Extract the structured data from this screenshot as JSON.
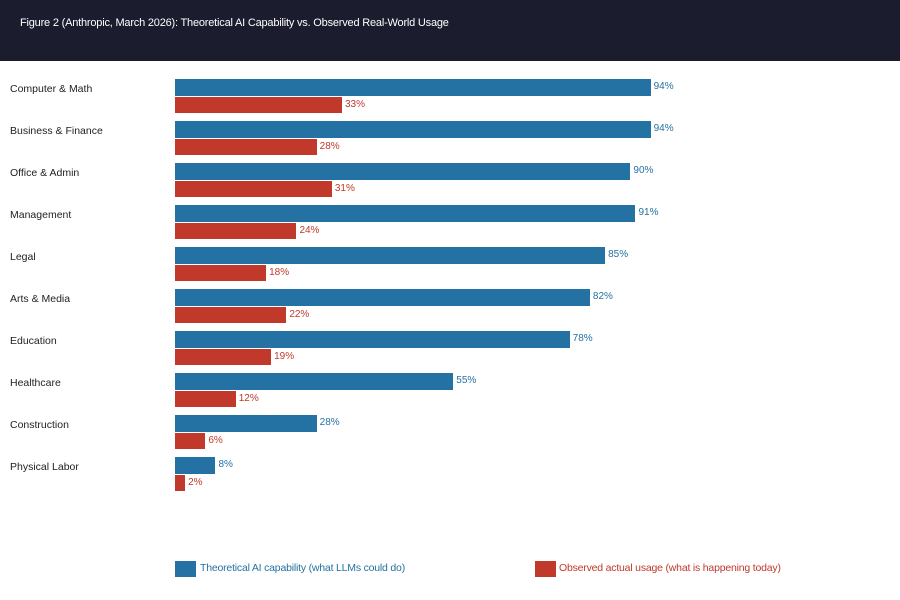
{
  "header": {
    "title": "Figure 2 (Anthropic, March 2026): Theoretical AI Capability vs. Observed Real-World Usage"
  },
  "chart_data": {
    "type": "bar",
    "orientation": "horizontal",
    "title": "Figure 2 (Anthropic, March 2026): Theoretical AI Capability vs. Observed Real-World Usage",
    "categories": [
      "Computer & Math",
      "Business & Finance",
      "Office & Admin",
      "Management",
      "Legal",
      "Arts & Media",
      "Education",
      "Healthcare",
      "Construction",
      "Physical Labor"
    ],
    "series": [
      {
        "name": "Theoretical AI capability (what LLMs could do)",
        "color": "#2471a3",
        "values": [
          94,
          94,
          90,
          91,
          85,
          82,
          78,
          55,
          28,
          8
        ]
      },
      {
        "name": "Observed actual usage (what is happening today)",
        "color": "#c0392b",
        "values": [
          33,
          28,
          31,
          24,
          18,
          22,
          19,
          12,
          6,
          2
        ]
      }
    ],
    "unit": "%",
    "xlim": [
      0,
      100
    ],
    "grid": false,
    "legend": "bottom"
  }
}
